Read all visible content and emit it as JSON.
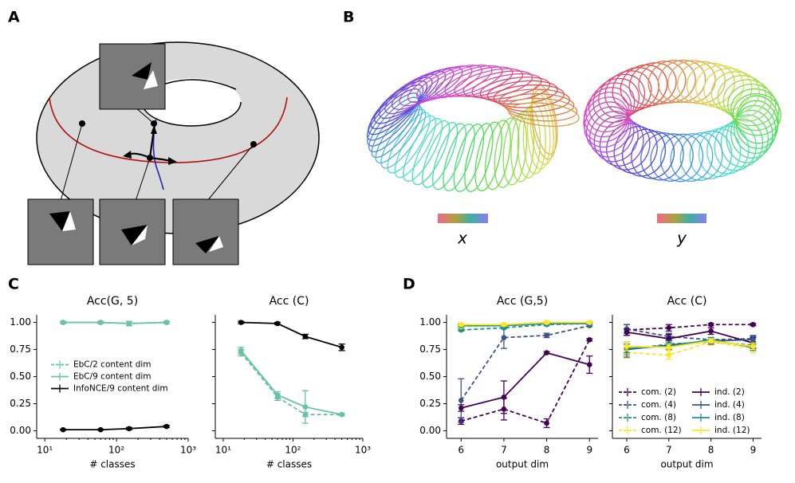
{
  "panels": [
    "A",
    "B",
    "C",
    "D"
  ],
  "torus_axes": [
    "x",
    "y"
  ],
  "chart_data": [
    {
      "type": "line",
      "title": "Acc(G, 5)",
      "xlabel": "# classes",
      "xscale": "log",
      "x": [
        18,
        60,
        150,
        500
      ],
      "xlim": [
        7.7,
        1000
      ],
      "xticks": [
        {
          "value": 10,
          "label": "10¹"
        },
        {
          "value": 100,
          "label": "10²"
        },
        {
          "value": 1000,
          "label": "10³"
        }
      ],
      "ylim": [
        -0.07,
        1.07
      ],
      "yticks": [
        {
          "value": 0,
          "label": "0.00"
        },
        {
          "value": 0.25,
          "label": "0.25"
        },
        {
          "value": 0.5,
          "label": "0.50"
        },
        {
          "value": 0.75,
          "label": "0.75"
        },
        {
          "value": 1,
          "label": "1.00"
        }
      ],
      "legend": "center left",
      "series": [
        {
          "name": "EbC/2 content dim",
          "color": "#66c2a5",
          "dashed": true,
          "values": [
            1.0,
            1.0,
            0.99,
            1.0
          ],
          "errors": [
            0.01,
            0.01,
            0.02,
            0.01
          ]
        },
        {
          "name": "EbC/9 content dim",
          "color": "#66c2a5",
          "dashed": false,
          "values": [
            1.0,
            1.0,
            0.99,
            1.0
          ],
          "errors": [
            0.01,
            0.01,
            0.02,
            0.01
          ]
        },
        {
          "name": "InfoNCE/9 content dim",
          "color": "#000000",
          "dashed": false,
          "values": [
            0.01,
            0.01,
            0.02,
            0.04
          ],
          "errors": [
            0.005,
            0.005,
            0.01,
            0.01
          ]
        }
      ]
    },
    {
      "type": "line",
      "title": "Acc (C)",
      "xlabel": "# classes",
      "xscale": "log",
      "x": [
        18,
        60,
        150,
        500
      ],
      "xlim": [
        7.7,
        1000
      ],
      "xticks": [
        {
          "value": 10,
          "label": "10¹"
        },
        {
          "value": 100,
          "label": "10²"
        },
        {
          "value": 1000,
          "label": "10³"
        }
      ],
      "ylim": [
        -0.07,
        1.07
      ],
      "series": [
        {
          "color": "#66c2a5",
          "dashed": true,
          "values": [
            0.72,
            0.31,
            0.15,
            0.15
          ],
          "errors": [
            0.03,
            0.03,
            0.02,
            0.01
          ]
        },
        {
          "color": "#66c2a5",
          "dashed": false,
          "values": [
            0.74,
            0.33,
            0.22,
            0.15
          ],
          "errors": [
            0.03,
            0.03,
            0.15,
            0.01
          ]
        },
        {
          "color": "#000000",
          "dashed": false,
          "values": [
            1.0,
            0.99,
            0.87,
            0.77
          ],
          "errors": [
            0.01,
            0.01,
            0.02,
            0.03
          ]
        }
      ]
    },
    {
      "type": "line",
      "title": "Acc (G,5)",
      "xlabel": "output dim",
      "x": [
        6,
        7,
        8,
        9
      ],
      "xlim": [
        5.66,
        9.2
      ],
      "xticks": [
        6,
        7,
        8,
        9
      ],
      "ylim": [
        -0.07,
        1.07
      ],
      "yticks": [
        {
          "value": 0,
          "label": "0.00"
        },
        {
          "value": 0.25,
          "label": "0.25"
        },
        {
          "value": 0.5,
          "label": "0.50"
        },
        {
          "value": 0.75,
          "label": "0.75"
        },
        {
          "value": 1,
          "label": "1.00"
        }
      ],
      "series": [
        {
          "color": "#440154",
          "dashed": true,
          "values": [
            0.09,
            0.2,
            0.07,
            0.84
          ],
          "errors": [
            0.03,
            0.1,
            0.04,
            0.01
          ]
        },
        {
          "color": "#3b528b",
          "dashed": true,
          "values": [
            0.28,
            0.86,
            0.88,
            0.97
          ],
          "errors": [
            0.2,
            0.1,
            0.02,
            0.01
          ]
        },
        {
          "color": "#21918c",
          "dashed": true,
          "values": [
            0.93,
            0.95,
            0.98,
            0.99
          ],
          "errors": [
            0.01,
            0.01,
            0.01,
            0.01
          ]
        },
        {
          "color": "#fde725",
          "dashed": true,
          "values": [
            0.96,
            0.97,
            0.99,
            0.99
          ],
          "errors": [
            0.01,
            0.01,
            0.01,
            0.01
          ]
        },
        {
          "color": "#440154",
          "dashed": false,
          "values": [
            0.21,
            0.31,
            0.72,
            0.61
          ],
          "errors": [
            0.03,
            0.15,
            0.01,
            0.08
          ]
        },
        {
          "color": "#3b528b",
          "dashed": false,
          "values": [
            0.97,
            0.97,
            0.99,
            0.99
          ],
          "errors": [
            0.01,
            0.01,
            0.01,
            0.01
          ]
        },
        {
          "color": "#21918c",
          "dashed": false,
          "values": [
            0.97,
            0.97,
            0.99,
            0.99
          ],
          "errors": [
            0.01,
            0.01,
            0.01,
            0.01
          ]
        },
        {
          "color": "#fde725",
          "dashed": false,
          "values": [
            0.98,
            0.98,
            1.0,
            1.0
          ],
          "errors": [
            0.01,
            0.01,
            0.01,
            0.01
          ]
        }
      ]
    },
    {
      "type": "line",
      "title": "Acc (C)",
      "xlabel": "output dim",
      "x": [
        6,
        7,
        8,
        9
      ],
      "xlim": [
        5.66,
        9.2
      ],
      "xticks": [
        6,
        7,
        8,
        9
      ],
      "ylim": [
        -0.07,
        1.07
      ],
      "legend": "lower center",
      "legend_columns": 2,
      "series": [
        {
          "name": "com. (2)",
          "color": "#440154",
          "dashed": true,
          "values": [
            0.93,
            0.95,
            0.98,
            0.98
          ],
          "errors": [
            0.05,
            0.03,
            0.01,
            0.01
          ]
        },
        {
          "name": "com. (4)",
          "color": "#3b528b",
          "dashed": true,
          "values": [
            0.94,
            0.87,
            0.84,
            0.85
          ],
          "errors": [
            0.04,
            0.03,
            0.02,
            0.03
          ]
        },
        {
          "name": "com. (8)",
          "color": "#21918c",
          "dashed": true,
          "values": [
            0.75,
            0.8,
            0.82,
            0.79
          ],
          "errors": [
            0.05,
            0.03,
            0.02,
            0.03
          ]
        },
        {
          "name": "com. (12)",
          "color": "#fde725",
          "dashed": true,
          "values": [
            0.72,
            0.7,
            0.82,
            0.76
          ],
          "errors": [
            0.05,
            0.04,
            0.03,
            0.04
          ]
        },
        {
          "name": "ind. (2)",
          "color": "#440154",
          "dashed": false,
          "values": [
            0.91,
            0.85,
            0.92,
            0.81
          ],
          "errors": [
            0.03,
            0.04,
            0.03,
            0.05
          ]
        },
        {
          "name": "ind. (4)",
          "color": "#3b528b",
          "dashed": false,
          "values": [
            0.75,
            0.79,
            0.83,
            0.84
          ],
          "errors": [
            0.07,
            0.04,
            0.03,
            0.03
          ]
        },
        {
          "name": "ind. (8)",
          "color": "#21918c",
          "dashed": false,
          "values": [
            0.76,
            0.78,
            0.84,
            0.77
          ],
          "errors": [
            0.04,
            0.03,
            0.02,
            0.03
          ]
        },
        {
          "name": "ind. (12)",
          "color": "#fde725",
          "dashed": false,
          "values": [
            0.78,
            0.77,
            0.83,
            0.78
          ],
          "errors": [
            0.04,
            0.03,
            0.02,
            0.03
          ]
        }
      ]
    }
  ]
}
